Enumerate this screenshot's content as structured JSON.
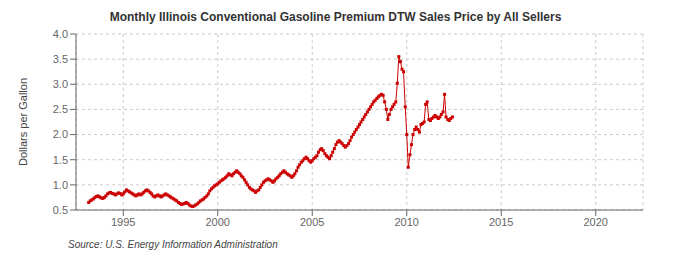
{
  "chart_data": {
    "type": "line",
    "title": "Monthly Illinois Conventional Gasoline Premium DTW Sales Price by All Sellers",
    "ylabel": "Dollars per Gallon",
    "annotation": "Source: U.S. Energy Information Administration",
    "xlim": [
      1992.5,
      2022.5
    ],
    "ylim": [
      0.5,
      4.0
    ],
    "xticks": [
      1995,
      2000,
      2005,
      2010,
      2015,
      2020
    ],
    "yticks": [
      0.5,
      {
        "value": 1.0,
        "label": "1.0"
      },
      1.5,
      {
        "value": 2.0,
        "label": "2.0"
      },
      2.5,
      {
        "value": 3.0,
        "label": "3.0"
      },
      3.5,
      {
        "value": 4.0,
        "label": "4.0"
      }
    ],
    "grid": true,
    "marker": "square",
    "line_style": "solid",
    "series": [
      {
        "color": "#cc0000",
        "x": [
          1993.17,
          1993.25,
          1993.33,
          1993.42,
          1993.5,
          1993.58,
          1993.67,
          1993.75,
          1993.83,
          1993.92,
          1994.0,
          1994.08,
          1994.17,
          1994.25,
          1994.33,
          1994.42,
          1994.5,
          1994.58,
          1994.67,
          1994.75,
          1994.83,
          1994.92,
          1995.0,
          1995.08,
          1995.17,
          1995.25,
          1995.33,
          1995.42,
          1995.5,
          1995.58,
          1995.67,
          1995.75,
          1995.83,
          1995.92,
          1996.0,
          1996.08,
          1996.17,
          1996.25,
          1996.33,
          1996.42,
          1996.5,
          1996.58,
          1996.67,
          1996.75,
          1996.83,
          1996.92,
          1997.0,
          1997.08,
          1997.17,
          1997.25,
          1997.33,
          1997.42,
          1997.5,
          1997.58,
          1997.67,
          1997.75,
          1997.83,
          1997.92,
          1998.0,
          1998.08,
          1998.17,
          1998.25,
          1998.33,
          1998.42,
          1998.5,
          1998.58,
          1998.67,
          1998.75,
          1998.83,
          1998.92,
          1999.0,
          1999.08,
          1999.17,
          1999.25,
          1999.33,
          1999.42,
          1999.5,
          1999.58,
          1999.67,
          1999.75,
          1999.83,
          1999.92
        ],
        "values": [
          0.65,
          0.68,
          0.7,
          0.72,
          0.75,
          0.77,
          0.78,
          0.76,
          0.74,
          0.73,
          0.75,
          0.78,
          0.82,
          0.84,
          0.85,
          0.83,
          0.82,
          0.8,
          0.82,
          0.84,
          0.83,
          0.8,
          0.82,
          0.86,
          0.9,
          0.88,
          0.86,
          0.84,
          0.82,
          0.8,
          0.78,
          0.8,
          0.82,
          0.8,
          0.82,
          0.85,
          0.88,
          0.9,
          0.88,
          0.85,
          0.82,
          0.78,
          0.76,
          0.78,
          0.8,
          0.78,
          0.76,
          0.78,
          0.8,
          0.82,
          0.8,
          0.78,
          0.76,
          0.74,
          0.72,
          0.7,
          0.68,
          0.65,
          0.63,
          0.61,
          0.62,
          0.63,
          0.65,
          0.63,
          0.6,
          0.58,
          0.57,
          0.58,
          0.6,
          0.62,
          0.65,
          0.68,
          0.7,
          0.72,
          0.75,
          0.78,
          0.82,
          0.88,
          0.92,
          0.95,
          0.98,
          1.0
        ]
      },
      {
        "color": "#cc0000",
        "x": [
          2000.0,
          2000.08,
          2000.17,
          2000.25,
          2000.33,
          2000.42,
          2000.5,
          2000.58,
          2000.67,
          2000.75,
          2000.83,
          2000.92,
          2001.0,
          2001.08,
          2001.17,
          2001.25,
          2001.33,
          2001.42,
          2001.5,
          2001.58,
          2001.67,
          2001.75,
          2001.83,
          2001.92,
          2002.0,
          2002.08,
          2002.17,
          2002.25,
          2002.33,
          2002.42,
          2002.5,
          2002.58,
          2002.67,
          2002.75,
          2002.83,
          2002.92,
          2003.0,
          2003.08,
          2003.17,
          2003.25,
          2003.33,
          2003.42,
          2003.5,
          2003.58,
          2003.67,
          2003.75,
          2003.83,
          2003.92,
          2004.0,
          2004.08,
          2004.17,
          2004.25,
          2004.33,
          2004.42,
          2004.5,
          2004.58,
          2004.67,
          2004.75,
          2004.83,
          2004.92,
          2005.0,
          2005.08,
          2005.17,
          2005.25,
          2005.33,
          2005.42,
          2005.5,
          2005.58,
          2005.67,
          2005.75,
          2005.83,
          2005.92,
          2006.0,
          2006.08,
          2006.17,
          2006.25,
          2006.33,
          2006.42,
          2006.5,
          2006.58,
          2006.67,
          2006.75,
          2006.83,
          2006.92,
          2007.0,
          2007.08,
          2007.17,
          2007.25,
          2007.33,
          2007.42,
          2007.5,
          2007.58,
          2007.67,
          2007.75,
          2007.83,
          2007.92,
          2008.0,
          2008.08,
          2008.17,
          2008.25,
          2008.33,
          2008.42,
          2008.5,
          2008.58,
          2008.67,
          2008.75,
          2008.83,
          2008.92,
          2009.0,
          2009.08,
          2009.17,
          2009.25,
          2009.33,
          2009.42,
          2009.5,
          2009.58,
          2009.67,
          2009.75,
          2009.83,
          2009.92,
          2010.0,
          2010.08,
          2010.17,
          2010.25,
          2010.33,
          2010.42,
          2010.5,
          2010.58,
          2010.67,
          2010.75,
          2010.83,
          2010.92,
          2011.0,
          2011.08,
          2011.17,
          2011.25,
          2011.33,
          2011.42,
          2011.5,
          2011.58,
          2011.67,
          2011.75,
          2011.83,
          2011.92,
          2012.0,
          2012.08,
          2012.17,
          2012.25,
          2012.33,
          2012.42
        ],
        "values": [
          1.02,
          1.05,
          1.08,
          1.1,
          1.12,
          1.15,
          1.18,
          1.22,
          1.2,
          1.18,
          1.22,
          1.25,
          1.28,
          1.25,
          1.22,
          1.18,
          1.15,
          1.1,
          1.05,
          1.0,
          0.95,
          0.92,
          0.9,
          0.88,
          0.85,
          0.88,
          0.9,
          0.95,
          1.0,
          1.05,
          1.08,
          1.1,
          1.12,
          1.1,
          1.08,
          1.05,
          1.08,
          1.12,
          1.15,
          1.18,
          1.22,
          1.25,
          1.28,
          1.25,
          1.22,
          1.2,
          1.18,
          1.15,
          1.18,
          1.22,
          1.28,
          1.35,
          1.4,
          1.45,
          1.48,
          1.52,
          1.55,
          1.52,
          1.48,
          1.45,
          1.48,
          1.52,
          1.55,
          1.58,
          1.65,
          1.7,
          1.72,
          1.68,
          1.62,
          1.58,
          1.55,
          1.52,
          1.58,
          1.65,
          1.72,
          1.8,
          1.85,
          1.88,
          1.85,
          1.82,
          1.78,
          1.75,
          1.78,
          1.82,
          1.88,
          1.95,
          2.0,
          2.05,
          2.1,
          2.15,
          2.2,
          2.25,
          2.3,
          2.35,
          2.4,
          2.45,
          2.5,
          2.55,
          2.6,
          2.65,
          2.68,
          2.72,
          2.75,
          2.78,
          2.8,
          2.78,
          2.65,
          2.5,
          2.3,
          2.4,
          2.5,
          2.55,
          2.6,
          2.65,
          3.02,
          3.55,
          3.45,
          3.3,
          3.25,
          2.55,
          2.0,
          1.35,
          1.6,
          1.8,
          2.0,
          2.1,
          2.15,
          2.1,
          2.05,
          2.2,
          2.22,
          2.25,
          2.6,
          2.65,
          2.3,
          2.28,
          2.32,
          2.35,
          2.38,
          2.35,
          2.32,
          2.35,
          2.4,
          2.45,
          2.8,
          2.35,
          2.3,
          2.28,
          2.32,
          2.35
        ]
      }
    ]
  }
}
